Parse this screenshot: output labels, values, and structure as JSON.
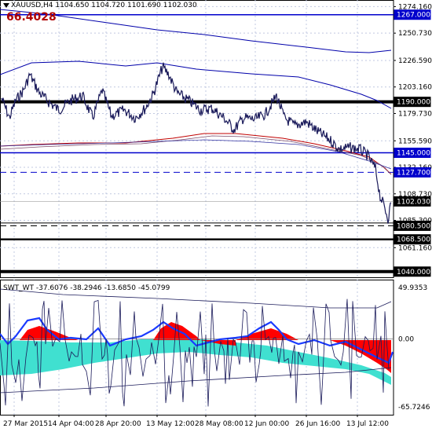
{
  "chart": {
    "symbol": "XAUUSD",
    "timeframe": "H4",
    "ohlc": "1104.650 1104.720 1101.690 1102.030",
    "title": "XAUUSD,H4  1104.650 1104.720 1101.690 1102.030",
    "big_value": "66.4028",
    "price_labels": [
      "1274.160",
      "1250.730",
      "1226.590",
      "1203.160",
      "1179.730",
      "1155.590",
      "1132.160",
      "1108.730",
      "1085.300",
      "1061.160"
    ],
    "boxed_levels": [
      {
        "text": "1267.000",
        "color": "#0000cc"
      },
      {
        "text": "1190.000",
        "color": "#000000"
      },
      {
        "text": "1145.000",
        "color": "#0000cc"
      },
      {
        "text": "1127.700",
        "color": "#0000cc"
      },
      {
        "text": "1102.030",
        "color": "#000000"
      },
      {
        "text": "1080.500",
        "color": "#000000"
      },
      {
        "text": "1068.500",
        "color": "#000000"
      },
      {
        "text": "1040.000",
        "color": "#000000"
      }
    ],
    "date_labels": [
      "27 Mar 2015",
      "14 Apr 04:00",
      "28 Apr 20:00",
      "13 May 12:00",
      "28 May 08:00",
      "12 Jun 00:00",
      "26 Jun 16:00",
      "13 Jul 12:00"
    ]
  },
  "indicator": {
    "name": "SWT_WT",
    "values": "-37.6076 -38.2946 -13.6850 -45.0799",
    "title": "SWT_WT -37.6076 -38.2946 -13.6850 -45.0799",
    "axis_labels": [
      "49.9353",
      "0.00",
      "-65.7246"
    ]
  },
  "colors": {
    "price": "#1a1a5a",
    "blue_level": "#0000cc",
    "ma_red": "#c00000",
    "ma_blue": "#0000aa",
    "teal": "#40e0d0",
    "red_fill": "#ff0000",
    "grid": "#c0c8e0"
  }
}
